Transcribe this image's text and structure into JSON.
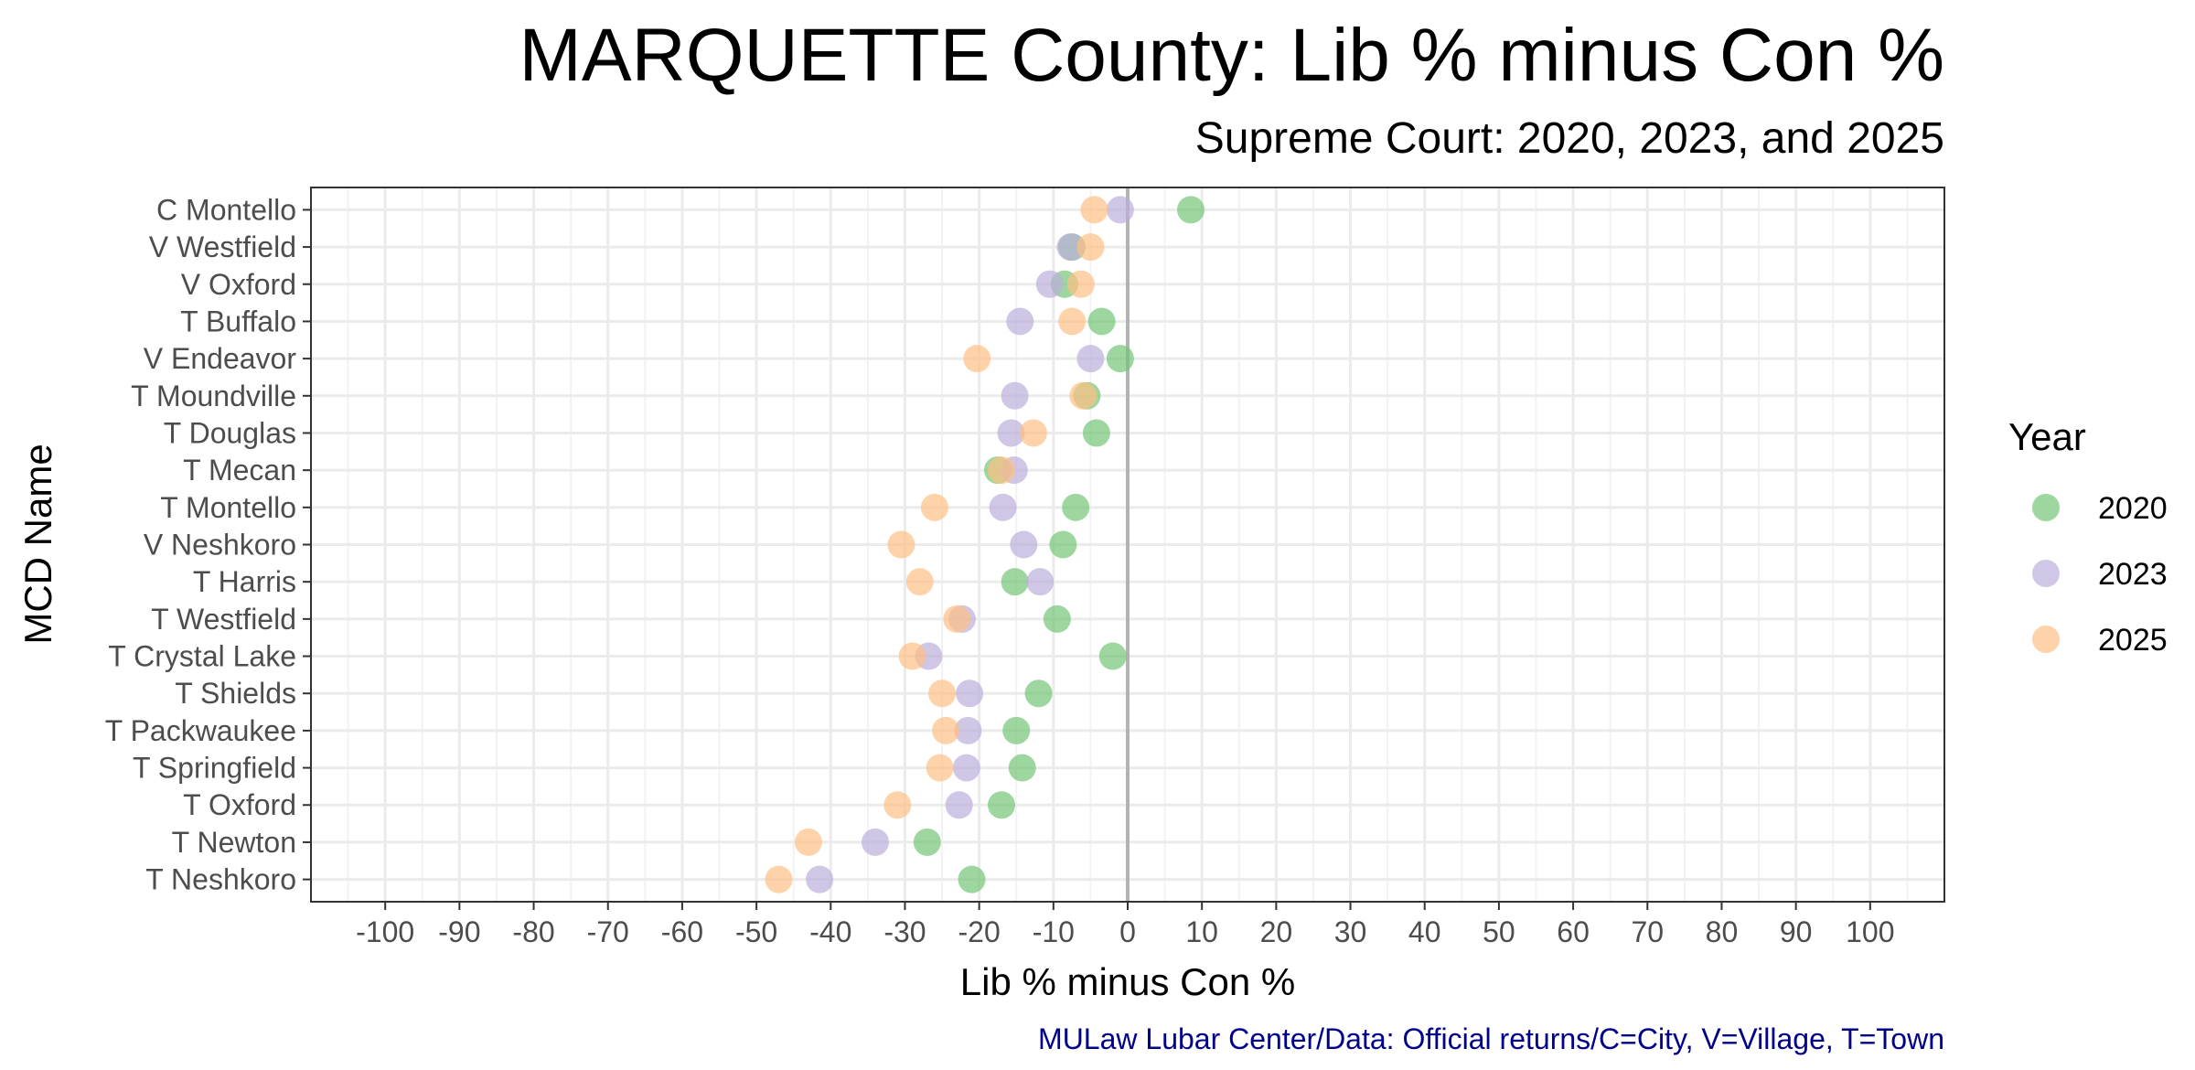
{
  "chart_data": {
    "type": "scatter",
    "title": "MARQUETTE County: Lib % minus Con %",
    "subtitle": "Supreme Court: 2020, 2023, and 2025",
    "xlabel": "Lib % minus Con %",
    "ylabel": "MCD Name",
    "caption": "MULaw Lubar Center/Data: Official returns/C=City, V=Village, T=Town",
    "xlim": [
      -110,
      110
    ],
    "xticks": [
      -100,
      -90,
      -80,
      -70,
      -60,
      -50,
      -40,
      -30,
      -20,
      -10,
      0,
      10,
      20,
      30,
      40,
      50,
      60,
      70,
      80,
      90,
      100
    ],
    "xtick_labels": [
      "-100",
      "-90",
      "-80",
      "-70",
      "-60",
      "-50",
      "-40",
      "-30",
      "-20",
      "-10",
      "0",
      "10",
      "20",
      "30",
      "40",
      "50",
      "60",
      "70",
      "80",
      "90",
      "100"
    ],
    "grid": true,
    "legend": {
      "title": "Year",
      "position": "right"
    },
    "categories": [
      "C Montello",
      "V Westfield",
      "V Oxford",
      "T Buffalo",
      "V Endeavor",
      "T Moundville",
      "T Douglas",
      "T Mecan",
      "T Montello",
      "V Neshkoro",
      "T Harris",
      "T Westfield",
      "T Crystal Lake",
      "T Shields",
      "T Packwaukee",
      "T Springfield",
      "T Oxford",
      "T Newton",
      "T Neshkoro"
    ],
    "series": [
      {
        "name": "2020",
        "color": "#74c476",
        "values": [
          8.5,
          -7.5,
          -8.5,
          -3.5,
          -1,
          -5.5,
          -4.2,
          -17.5,
          -7,
          -8.7,
          -15.2,
          -9.5,
          -2,
          -12,
          -15,
          -14.2,
          -17,
          -27,
          -21
        ]
      },
      {
        "name": "2023",
        "color": "#bcaedb",
        "values": [
          -1,
          -7.7,
          -10.5,
          -14.5,
          -5,
          -15.2,
          -15.7,
          -15.3,
          -16.8,
          -14,
          -11.8,
          -22.3,
          -26.8,
          -21.3,
          -21.5,
          -21.7,
          -22.7,
          -34,
          -41.5
        ]
      },
      {
        "name": "2025",
        "color": "#ffc084",
        "values": [
          -4.5,
          -5,
          -6.3,
          -7.5,
          -20.3,
          -6,
          -12.7,
          -17,
          -26,
          -30.5,
          -28,
          -23,
          -29,
          -25,
          -24.5,
          -25.3,
          -31,
          -43,
          -47
        ]
      }
    ]
  }
}
